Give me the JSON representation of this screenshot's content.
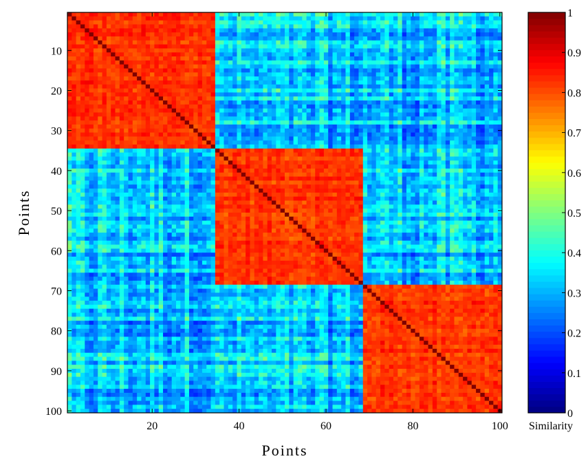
{
  "chart_data": {
    "type": "heatmap",
    "title": "",
    "xlabel": "Points",
    "ylabel": "Points",
    "n_points": 100,
    "xlim": [
      1,
      100
    ],
    "ylim": [
      1,
      100
    ],
    "x_ticks": [
      20,
      40,
      60,
      80,
      100
    ],
    "y_ticks": [
      10,
      20,
      30,
      40,
      50,
      60,
      70,
      80,
      90,
      100
    ],
    "y_axis_direction": "top-to-bottom",
    "clusters": [
      {
        "start": 1,
        "end": 34
      },
      {
        "start": 35,
        "end": 68
      },
      {
        "start": 69,
        "end": 100
      }
    ],
    "within_cluster_similarity": [
      0.75,
      0.9
    ],
    "between_cluster_similarity": [
      0.15,
      0.55
    ],
    "diagonal_value": 1.0,
    "colormap": "jet",
    "colorbar": {
      "label": "Similarity",
      "range": [
        0,
        1
      ],
      "ticks": [
        0,
        0.1,
        0.2,
        0.3,
        0.4,
        0.5,
        0.6,
        0.7,
        0.8,
        0.9,
        1
      ],
      "tick_labels": [
        "0",
        "0.1",
        "0.2",
        "0.3",
        "0.4",
        "0.5",
        "0.6",
        "0.7",
        "0.8",
        "0.9",
        "1"
      ]
    }
  }
}
